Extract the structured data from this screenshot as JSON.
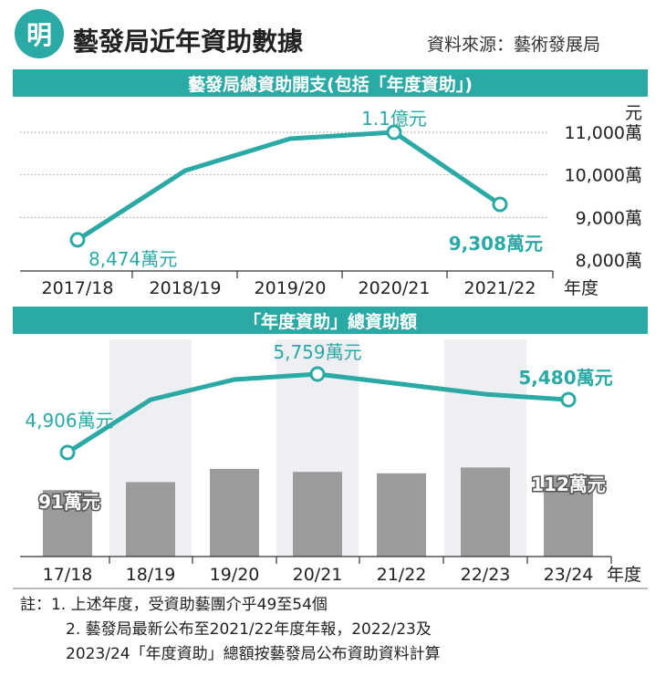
{
  "header": {
    "logo_char": "明",
    "title": "藝發局近年資助數據",
    "source": "資料來源：藝術發展局"
  },
  "colors": {
    "accent": "#2aa9a5",
    "bar": "#9b9b9b",
    "highlight": "#eeeff2"
  },
  "chart_data": [
    {
      "type": "line",
      "title": "藝發局總資助開支(包括「年度資助」)",
      "categories": [
        "2017/18",
        "2018/19",
        "2019/20",
        "2020/21",
        "2021/22"
      ],
      "xlabel": "年度",
      "ylabel": "元",
      "series": [
        {
          "values": [
            8474,
            10100,
            10850,
            11000,
            9308
          ]
        }
      ],
      "ylim": [
        8000,
        11000
      ],
      "yticks": [
        "8,000萬",
        "9,000萬",
        "10,000萬",
        "11,000萬"
      ],
      "annotations": [
        {
          "index": 0,
          "text": "8,474萬元"
        },
        {
          "index": 3,
          "text": "1.1億元"
        },
        {
          "index": 4,
          "text": "9,308萬元"
        }
      ],
      "grid": true
    },
    {
      "type": "bar+line",
      "title": "「年度資助」總資助額",
      "categories": [
        "17/18",
        "18/19",
        "19/20",
        "20/21",
        "21/22",
        "22/23",
        "23/24"
      ],
      "xlabel": "年度",
      "series": [
        {
          "type": "line",
          "values": [
            4906,
            5480,
            5700,
            5759,
            5650,
            5540,
            5480
          ]
        },
        {
          "type": "bar",
          "values": [
            91,
            102,
            120,
            116,
            114,
            122,
            112
          ]
        }
      ],
      "annotations": [
        {
          "series": 0,
          "index": 0,
          "text": "4,906萬元"
        },
        {
          "series": 0,
          "index": 3,
          "text": "5,759萬元"
        },
        {
          "series": 0,
          "index": 6,
          "text": "5,480萬元"
        },
        {
          "series": 1,
          "index": 0,
          "text": "91萬元"
        },
        {
          "series": 1,
          "index": 6,
          "text": "112萬元"
        }
      ]
    }
  ],
  "notes": {
    "line1": "註：1. 上述年度，受資助藝團介乎49至54個",
    "line2": "2. 藝發局最新公布至2021/22年度年報，2022/23及",
    "line3": "2023/24「年度資助」總額按藝發局公布資助資料計算"
  }
}
